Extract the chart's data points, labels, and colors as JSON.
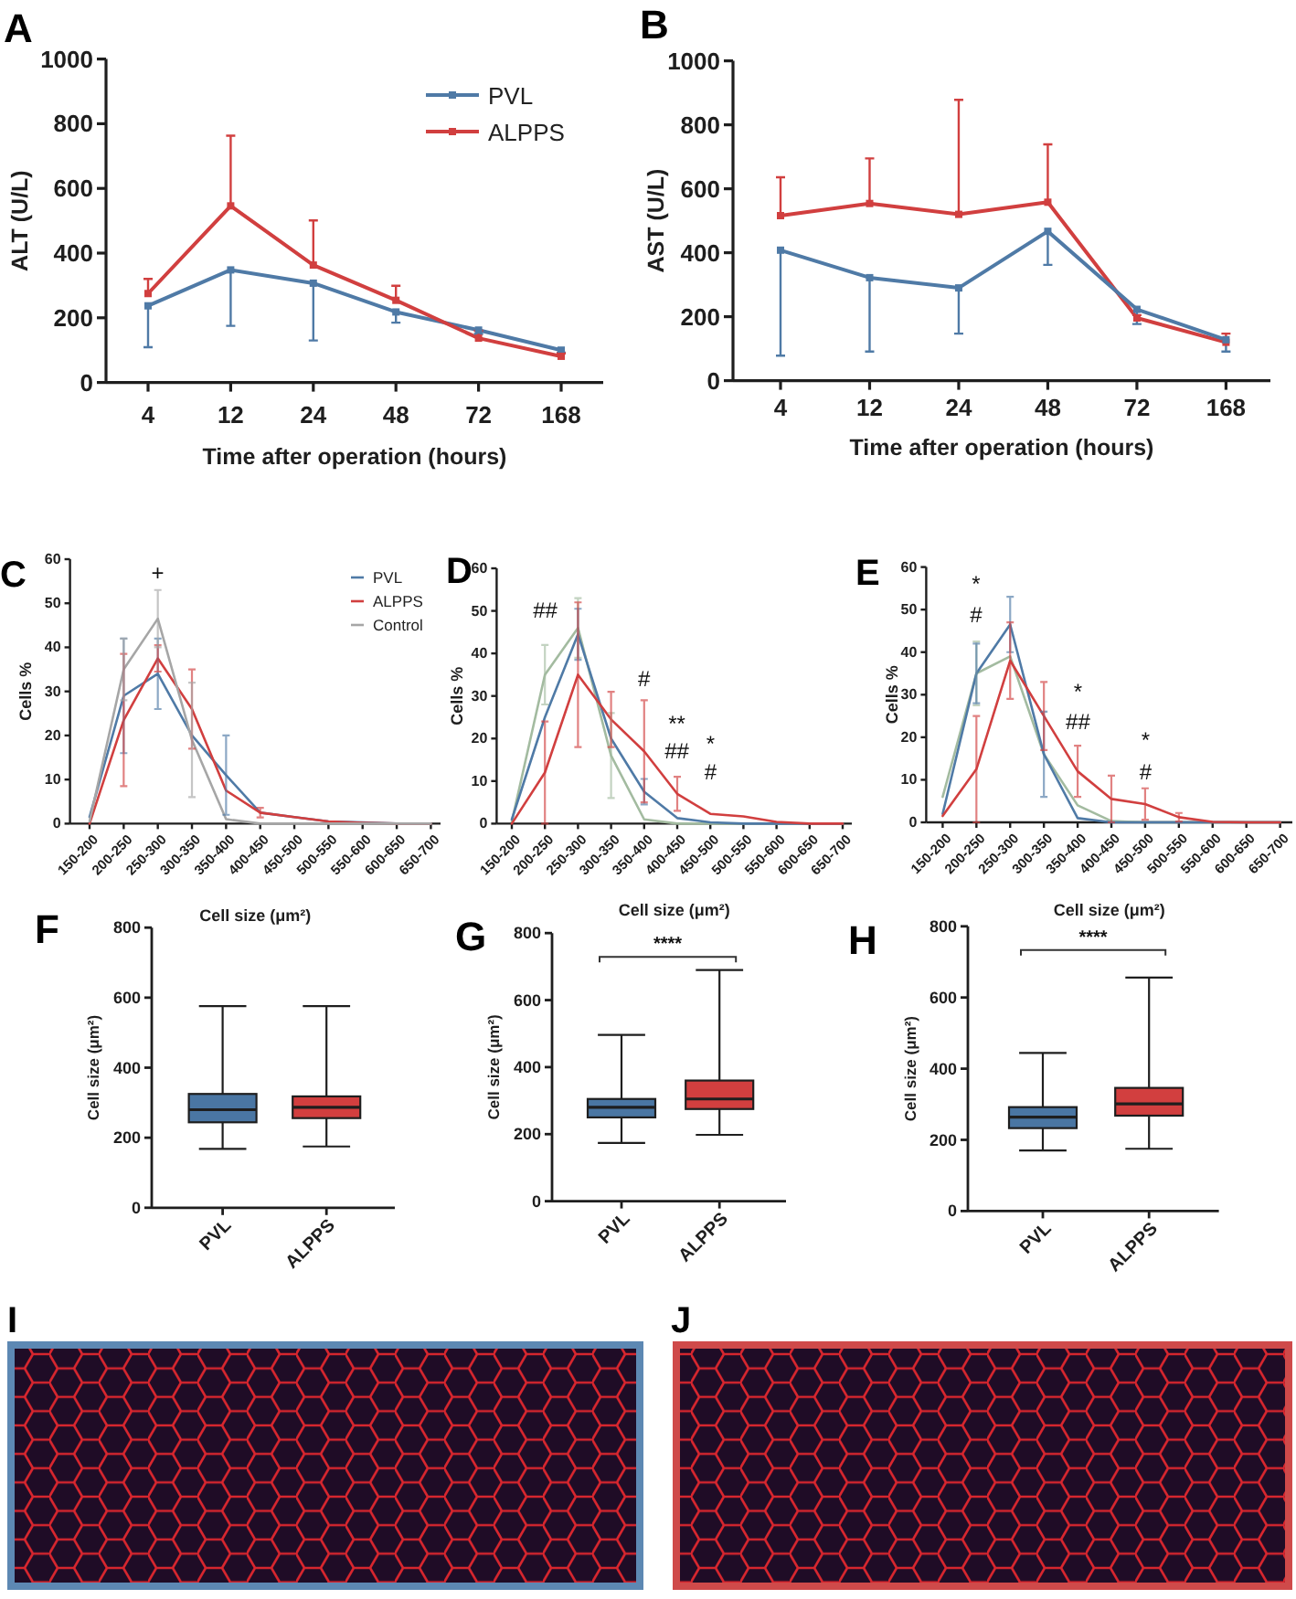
{
  "chart_data": [
    {
      "type": "line",
      "title": "A",
      "categories": [
        "4",
        "12",
        "24",
        "48",
        "72",
        "168"
      ],
      "xlabel": "Time after operation (hours)",
      "ylabel": "ALT (U/L)",
      "ylim": [
        0,
        1000
      ],
      "yticks": [
        0,
        200,
        400,
        600,
        800,
        1000
      ],
      "marker": "square",
      "legend": "top right",
      "series": [
        {
          "name": "PVL",
          "color": "#4f7aa6",
          "values": [
            237,
            348,
            307,
            218,
            162,
            100
          ],
          "errors": [
            [
              109,
              237
            ],
            [
              175,
              348
            ],
            [
              130,
              307
            ],
            [
              185,
              218
            ],
            [
              150,
              162
            ],
            [
              92,
              100
            ]
          ]
        },
        {
          "name": "ALPPS",
          "color": "#d13f3f",
          "values": [
            275,
            546,
            363,
            254,
            137,
            81
          ],
          "errors": [
            [
              275,
              320
            ],
            [
              546,
              763
            ],
            [
              363,
              501
            ],
            [
              254,
              299
            ],
            [
              137,
              160
            ],
            [
              81,
              90
            ]
          ]
        }
      ]
    },
    {
      "type": "line",
      "title": "B",
      "categories": [
        "4",
        "12",
        "24",
        "48",
        "72",
        "168"
      ],
      "xlabel": "Time after operation (hours)",
      "ylabel": "AST (U/L)",
      "ylim": [
        0,
        1000
      ],
      "yticks": [
        0,
        200,
        400,
        600,
        800,
        1000
      ],
      "marker": "square",
      "series": [
        {
          "color": "#d13f3f",
          "values": [
            516,
            554,
            520,
            558,
            196,
            120
          ],
          "errors": [
            [
              516,
              636
            ],
            [
              554,
              695
            ],
            [
              520,
              878
            ],
            [
              558,
              739
            ],
            [
              196,
              205
            ],
            [
              120,
              147
            ]
          ]
        },
        {
          "color": "#4f7aa6",
          "values": [
            408,
            322,
            290,
            467,
            223,
            128
          ],
          "errors": [
            [
              78,
              408
            ],
            [
              91,
              322
            ],
            [
              147,
              290
            ],
            [
              362,
              467
            ],
            [
              177,
              223
            ],
            [
              91,
              128
            ]
          ]
        }
      ]
    },
    {
      "type": "line",
      "title": "C",
      "categories": [
        "150-200",
        "200-250",
        "250-300",
        "300-350",
        "350-400",
        "400-450",
        "450-500",
        "500-550",
        "550-600",
        "600-650",
        "650-700"
      ],
      "xlabel": "Cell size (μm²)",
      "ylabel": "Cells %",
      "ylim": [
        0,
        60
      ],
      "yticks": [
        0,
        10,
        20,
        30,
        40,
        50,
        60
      ],
      "legend": "top right",
      "annotations": [
        "+"
      ],
      "series": [
        {
          "name": "PVL",
          "color": "#4f7aa6",
          "values": [
            1.5,
            29,
            34,
            20,
            11,
            2.5,
            1.5,
            0.5,
            0.3,
            0,
            0
          ],
          "errors": [
            null,
            13,
            8,
            null,
            9,
            null,
            null,
            null,
            null,
            null,
            null
          ]
        },
        {
          "name": "ALPPS",
          "color": "#d13f3f",
          "values": [
            0,
            23.5,
            37.5,
            26,
            7.5,
            2.5,
            1.5,
            0.5,
            0.2,
            0,
            0
          ],
          "errors": [
            null,
            15,
            3,
            9,
            null,
            1.1,
            null,
            null,
            null,
            null,
            null
          ]
        },
        {
          "name": "Control",
          "color": "#a6a6a6",
          "values": [
            0.5,
            35,
            46.5,
            19,
            1,
            0,
            0,
            0,
            0,
            0,
            0
          ],
          "errors": [
            null,
            7,
            6.5,
            13,
            null,
            null,
            null,
            null,
            null,
            null,
            null
          ]
        }
      ]
    },
    {
      "type": "line",
      "title": "D",
      "categories": [
        "150-200",
        "200-250",
        "250-300",
        "300-350",
        "350-400",
        "400-450",
        "450-500",
        "500-550",
        "550-600",
        "600-650",
        "650-700"
      ],
      "xlabel": "Cell size (μm²)",
      "ylabel": "Cells %",
      "ylim": [
        0,
        60
      ],
      "yticks": [
        0,
        10,
        20,
        30,
        40,
        50,
        60
      ],
      "annotations": [
        "##",
        "#",
        "**",
        "##",
        "*",
        "#"
      ],
      "series": [
        {
          "color": "#a3bba0",
          "values": [
            0.5,
            35,
            46,
            16,
            1,
            0,
            0,
            0,
            0,
            0,
            0
          ],
          "errors": [
            null,
            7,
            7,
            10,
            null,
            null,
            null,
            null,
            null,
            null,
            null
          ]
        },
        {
          "color": "#4f7aa6",
          "values": [
            1,
            25,
            44.5,
            20,
            7.5,
            1.3,
            0.3,
            0,
            0,
            0,
            0
          ],
          "errors": [
            null,
            null,
            6,
            null,
            3,
            null,
            null,
            null,
            null,
            null,
            null
          ]
        },
        {
          "color": "#d13f3f",
          "values": [
            0,
            12,
            35,
            24.5,
            17,
            7,
            2.3,
            1.7,
            0.4,
            0,
            0
          ],
          "errors": [
            null,
            12,
            17,
            6.5,
            12,
            4,
            null,
            null,
            null,
            null,
            null
          ]
        }
      ]
    },
    {
      "type": "line",
      "title": "E",
      "categories": [
        "150-200",
        "200-250",
        "250-300",
        "300-350",
        "350-400",
        "400-450",
        "450-500",
        "500-550",
        "550-600",
        "600-650",
        "650-700"
      ],
      "xlabel": "Cell size (μm²)",
      "ylabel": "Cells %",
      "ylim": [
        0,
        60
      ],
      "yticks": [
        0,
        10,
        20,
        30,
        40,
        50,
        60
      ],
      "annotations": [
        "*",
        "#",
        "*",
        "##",
        "*",
        "#"
      ],
      "series": [
        {
          "color": "#a3bba0",
          "values": [
            6,
            35,
            39,
            16,
            4,
            0.3,
            0,
            0,
            0,
            0,
            0
          ],
          "errors": [
            null,
            7.5,
            null,
            null,
            null,
            null,
            null,
            null,
            null,
            null,
            null
          ]
        },
        {
          "color": "#4f7aa6",
          "values": [
            2,
            35,
            46.5,
            16,
            1,
            0,
            0,
            0,
            0,
            0,
            0
          ],
          "errors": [
            null,
            7,
            6.5,
            10,
            null,
            null,
            null,
            null,
            null,
            null,
            null
          ]
        },
        {
          "color": "#d13f3f",
          "values": [
            1.5,
            12.5,
            38,
            25,
            12,
            5.5,
            4.3,
            1.2,
            0.1,
            0,
            0
          ],
          "errors": [
            null,
            12.5,
            9,
            8,
            6,
            5.5,
            3.7,
            1,
            null,
            null,
            null
          ]
        }
      ]
    },
    {
      "type": "box",
      "title": "F",
      "categories": [
        "PVL",
        "ALPPS"
      ],
      "ylabel": "Cell size (μm²)",
      "ylim": [
        0,
        800
      ],
      "yticks": [
        0,
        200,
        400,
        600,
        800
      ],
      "colors": [
        "#4a76a3",
        "#d23f3f"
      ],
      "boxes": [
        {
          "low": 168,
          "q1": 244,
          "median": 280,
          "q3": 325,
          "high": 576
        },
        {
          "low": 175,
          "q1": 256,
          "median": 287,
          "q3": 318,
          "high": 576
        }
      ]
    },
    {
      "type": "box",
      "title": "G",
      "categories": [
        "PVL",
        "ALPPS"
      ],
      "ylabel": "Cell size (μm²)",
      "ylim": [
        0,
        800
      ],
      "yticks": [
        0,
        200,
        400,
        600,
        800
      ],
      "colors": [
        "#4a76a3",
        "#d23f3f"
      ],
      "annotations": [
        "****"
      ],
      "boxes": [
        {
          "low": 174,
          "q1": 250,
          "median": 280,
          "q3": 305,
          "high": 496
        },
        {
          "low": 198,
          "q1": 275,
          "median": 305,
          "q3": 360,
          "high": 690
        }
      ]
    },
    {
      "type": "box",
      "title": "H",
      "categories": [
        "PVL",
        "ALPPS"
      ],
      "ylabel": "Cell size (μm²)",
      "ylim": [
        0,
        800
      ],
      "yticks": [
        0,
        200,
        400,
        600,
        800
      ],
      "colors": [
        "#4a76a3",
        "#d23f3f"
      ],
      "annotations": [
        "****"
      ],
      "boxes": [
        {
          "low": 170,
          "q1": 233,
          "median": 264,
          "q3": 292,
          "high": 444
        },
        {
          "low": 175,
          "q1": 268,
          "median": 301,
          "q3": 346,
          "high": 656
        }
      ]
    },
    {
      "type": "other",
      "title": "I"
    },
    {
      "type": "other",
      "title": "J"
    }
  ]
}
